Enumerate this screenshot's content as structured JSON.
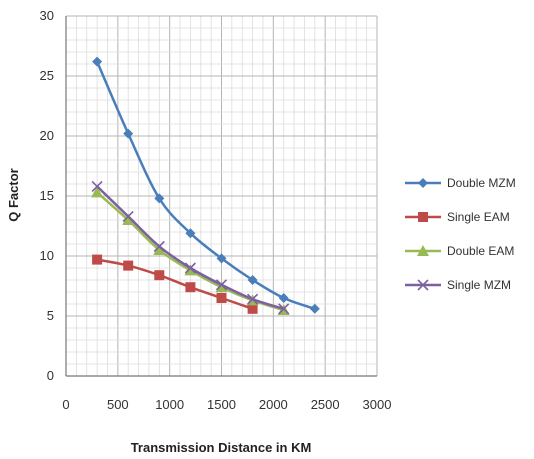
{
  "chart_data": {
    "type": "line",
    "title": "",
    "xlabel": "Transmission Distance in KM",
    "ylabel": "Q Factor",
    "xlim": [
      0,
      3000
    ],
    "ylim": [
      0,
      30
    ],
    "x_ticks": [
      "0",
      "500",
      "1000",
      "1500",
      "2000",
      "2500",
      "3000"
    ],
    "y_ticks": [
      "0",
      "5",
      "10",
      "15",
      "20",
      "25",
      "30"
    ],
    "grid": true,
    "legend_position": "right",
    "series": [
      {
        "name": "Double MZM",
        "color": "#4a7ebb",
        "marker": "diamond",
        "x": [
          300,
          600,
          900,
          1200,
          1500,
          1800,
          2100,
          2400
        ],
        "y": [
          26.2,
          20.2,
          14.8,
          11.9,
          9.8,
          8.0,
          6.5,
          5.6
        ]
      },
      {
        "name": "Single EAM",
        "color": "#be4b48",
        "marker": "square",
        "x": [
          300,
          600,
          900,
          1200,
          1500,
          1800
        ],
        "y": [
          9.7,
          9.2,
          8.4,
          7.4,
          6.5,
          5.6
        ]
      },
      {
        "name": "Double EAM",
        "color": "#98b954",
        "marker": "triangle",
        "x": [
          300,
          600,
          900,
          1200,
          1500,
          1800,
          2100
        ],
        "y": [
          15.3,
          13.0,
          10.5,
          8.8,
          7.4,
          6.3,
          5.5
        ]
      },
      {
        "name": "Single MZM",
        "color": "#7d60a0",
        "marker": "x",
        "x": [
          300,
          600,
          900,
          1200,
          1500,
          1800,
          2100
        ],
        "y": [
          15.8,
          13.3,
          10.8,
          9.0,
          7.6,
          6.4,
          5.6
        ]
      }
    ]
  }
}
